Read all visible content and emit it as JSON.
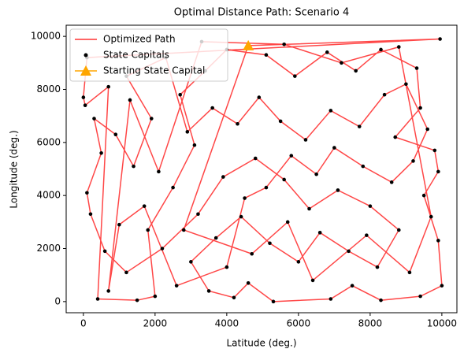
{
  "chart_data": {
    "type": "scatter",
    "title": "Optimal Distance Path: Scenario 4",
    "xlabel": "Latitude (deg.)",
    "ylabel": "Longitude (deg.)",
    "xlim": [
      -480,
      10420
    ],
    "ylim": [
      -420,
      10420
    ],
    "xticks": [
      0,
      2000,
      4000,
      6000,
      8000,
      10000
    ],
    "yticks": [
      0,
      2000,
      4000,
      6000,
      8000,
      10000
    ],
    "legend": "upper left",
    "x": [
      9950,
      100,
      0,
      50,
      700,
      400,
      1500,
      2000,
      1800,
      2500,
      3100,
      2700,
      3400,
      4000,
      5100,
      5900,
      6800,
      7600,
      8300,
      9300,
      9400,
      8700,
      9800,
      9900,
      9500,
      9900,
      10000,
      9400,
      8300,
      7500,
      6900,
      5300,
      4600,
      4200,
      3500,
      3000,
      3700,
      4400,
      5200,
      6000,
      6600,
      7400,
      8200,
      8800,
      8000,
      7100,
      6300,
      5600,
      4800,
      3900,
      3200,
      2200,
      1200,
      600,
      200,
      100,
      500,
      300,
      900,
      1400,
      1900,
      1200,
      2300,
      2900,
      3600,
      4300,
      4900,
      5500,
      6200,
      6900,
      7700,
      8400,
      9000,
      9600,
      9200,
      8600,
      7800,
      7000,
      6500,
      5800,
      5100,
      4500,
      4000,
      2600,
      1700,
      1000,
      700,
      1300,
      2100,
      3300,
      5600,
      7200,
      8800,
      9700,
      9100,
      7900,
      6400,
      5700,
      4700,
      2800
    ],
    "y": [
      9900,
      9200,
      7700,
      7400,
      8100,
      100,
      50,
      200,
      2700,
      4300,
      5900,
      7800,
      8700,
      9500,
      9300,
      8500,
      9400,
      8700,
      9500,
      8800,
      7300,
      6200,
      5700,
      4900,
      4000,
      2300,
      600,
      200,
      50,
      600,
      100,
      0,
      700,
      150,
      400,
      1500,
      2400,
      3200,
      2200,
      1500,
      2600,
      1900,
      1300,
      2700,
      3600,
      4200,
      3500,
      4600,
      5400,
      4700,
      3300,
      2000,
      1100,
      1900,
      3300,
      4100,
      5600,
      6900,
      6300,
      5100,
      6900,
      8500,
      9200,
      6400,
      7300,
      6700,
      7700,
      6800,
      6100,
      7200,
      6600,
      7800,
      8200,
      6500,
      5300,
      4500,
      5100,
      5800,
      4800,
      5500,
      4300,
      3900,
      1300,
      600,
      3600,
      2900,
      400,
      7600,
      4900,
      9800,
      9700,
      9000,
      9600,
      3200,
      1100,
      2500,
      800,
      3000,
      1800,
      2700
    ],
    "series": [
      {
        "name": "Optimized Path",
        "color": "#ff3333"
      },
      {
        "name": "State Capitals",
        "color": "#000000"
      },
      {
        "name": "Starting State Capital",
        "color": "#ffa500",
        "x": 4600,
        "y": 9650
      }
    ]
  }
}
